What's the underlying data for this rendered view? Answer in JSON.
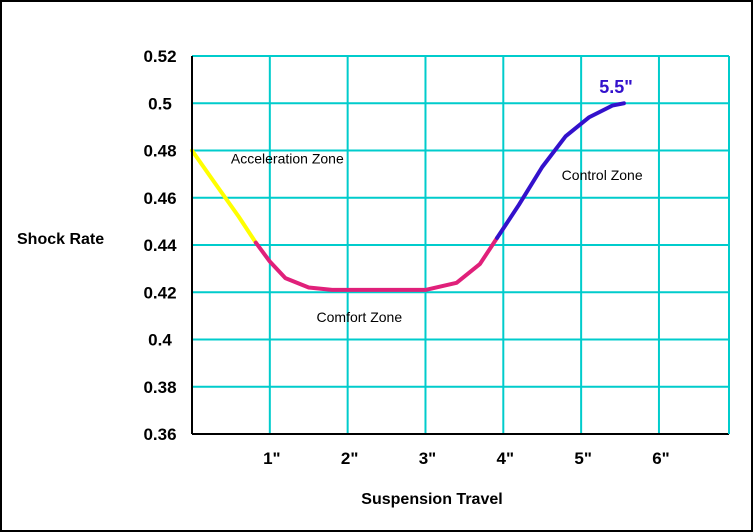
{
  "chart_data": {
    "type": "line",
    "xlabel": "Suspension Travel",
    "ylabel": "Shock Rate",
    "x_ticks": [
      "1\"",
      "2\"",
      "3\"",
      "4\"",
      "5\"",
      "6\""
    ],
    "y_ticks": [
      "0.36",
      "0.38",
      "0.4",
      "0.42",
      "0.44",
      "0.46",
      "0.48",
      "0.5",
      "0.52"
    ],
    "xlim": [
      0.0,
      6.9
    ],
    "ylim": [
      0.36,
      0.52
    ],
    "grid": true,
    "end_label": "5.5\"",
    "series": [
      {
        "zone": "Acceleration Zone",
        "color": "#FFFF00",
        "x": [
          0.0,
          0.3,
          0.6,
          0.82
        ],
        "y": [
          0.48,
          0.466,
          0.452,
          0.441
        ]
      },
      {
        "zone": "Comfort Zone",
        "color": "#E0207A",
        "x": [
          0.82,
          1.0,
          1.2,
          1.5,
          1.8,
          2.2,
          2.6,
          3.0,
          3.4,
          3.7,
          3.92
        ],
        "y": [
          0.441,
          0.433,
          0.426,
          0.422,
          0.421,
          0.421,
          0.421,
          0.421,
          0.424,
          0.432,
          0.443
        ]
      },
      {
        "zone": "Control Zone",
        "color": "#3311CC",
        "x": [
          3.92,
          4.2,
          4.5,
          4.8,
          5.1,
          5.4,
          5.55
        ],
        "y": [
          0.443,
          0.457,
          0.473,
          0.486,
          0.494,
          0.499,
          0.5
        ]
      }
    ],
    "annotations": [
      "Acceleration Zone",
      "Comfort Zone",
      "Control Zone"
    ]
  },
  "colors": {
    "grid": "#00CCCC",
    "end_label": "#3311CC"
  }
}
